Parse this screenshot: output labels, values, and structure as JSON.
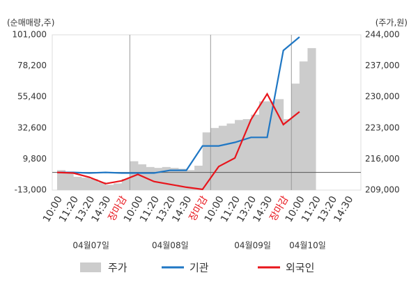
{
  "chart_data": {
    "type": "line",
    "left_axis_label": "(순매매량,주)",
    "right_axis_label": "(주가,원)",
    "xlim": [
      -0.3,
      18.8
    ],
    "xticks": [
      {
        "value": 0,
        "label": "10:00"
      },
      {
        "value": 1,
        "label": "11:20"
      },
      {
        "value": 2,
        "label": "13:20"
      },
      {
        "value": 3,
        "label": "14:30"
      },
      {
        "value": 4,
        "label": "장마감"
      },
      {
        "value": 5,
        "label": "10:00"
      },
      {
        "value": 6,
        "label": "11:20"
      },
      {
        "value": 7,
        "label": "13:20"
      },
      {
        "value": 8,
        "label": "14:30"
      },
      {
        "value": 9,
        "label": "장마감"
      },
      {
        "value": 10,
        "label": "10:00"
      },
      {
        "value": 11,
        "label": "11:20"
      },
      {
        "value": 12,
        "label": "13:20"
      },
      {
        "value": 13,
        "label": "14:30"
      },
      {
        "value": 14,
        "label": "장마감"
      },
      {
        "value": 15,
        "label": "10:00"
      },
      {
        "value": 16,
        "label": "11:20"
      },
      {
        "value": 17,
        "label": "13:20"
      },
      {
        "value": 18,
        "label": "14:30"
      }
    ],
    "dates": [
      "04월07일",
      "04월08일",
      "04월09일",
      "04월10일"
    ],
    "ylim": [
      -13000,
      101000
    ],
    "yticks": [
      {
        "value": -13000,
        "label": "-13,000"
      },
      {
        "value": 9800,
        "label": "9,800"
      },
      {
        "value": 32600,
        "label": "32,600"
      },
      {
        "value": 55400,
        "label": "55,400"
      },
      {
        "value": 78200,
        "label": "78,200"
      },
      {
        "value": 101000,
        "label": "101,000"
      }
    ],
    "y2lim": [
      209000,
      244000
    ],
    "y2ticks": [
      {
        "value": 209000,
        "label": "209,000"
      },
      {
        "value": 216000,
        "label": "216,000"
      },
      {
        "value": 223000,
        "label": "223,000"
      },
      {
        "value": 230000,
        "label": "230,000"
      },
      {
        "value": 237000,
        "label": "237,000"
      },
      {
        "value": 244000,
        "label": "244,000"
      }
    ],
    "series": [
      {
        "name": "주가",
        "color": "#cccccc",
        "axis": "y2",
        "style": "bar",
        "x": [
          0,
          0.5,
          1,
          1.5,
          2,
          2.5,
          3,
          3.5,
          4,
          4.5,
          5,
          5.5,
          6,
          6.5,
          7,
          7.5,
          8,
          8.5,
          9,
          9.5,
          10,
          10.5,
          11,
          11.5,
          12,
          12.5,
          13,
          13.5,
          14,
          14.5,
          15,
          15.5
        ],
        "values": [
          213500,
          212800,
          212000,
          211800,
          211500,
          210800,
          210200,
          210500,
          211500,
          215500,
          214800,
          214200,
          214000,
          214200,
          214000,
          213800,
          213500,
          214500,
          222000,
          223000,
          223500,
          224000,
          224800,
          225000,
          226000,
          229000,
          229000,
          229500,
          225000,
          233000,
          238000,
          241000
        ]
      },
      {
        "name": "기관",
        "color": "#1f77c4",
        "style": "line",
        "x": [
          0,
          1,
          2,
          3,
          4,
          5,
          6,
          7,
          8,
          9,
          10,
          11,
          12,
          13,
          14,
          15
        ],
        "values": [
          0,
          0,
          -500,
          0,
          -500,
          -500,
          -500,
          1500,
          1500,
          19400,
          19400,
          22000,
          25700,
          25700,
          89500,
          99400
        ]
      },
      {
        "name": "외국인",
        "color": "#e8141b",
        "style": "line",
        "x": [
          0,
          1,
          2,
          3,
          4,
          5,
          6,
          7,
          8,
          9,
          10,
          11,
          12,
          13,
          14,
          15
        ],
        "values": [
          0,
          -500,
          -3600,
          -8300,
          -6200,
          -1500,
          -6700,
          -8800,
          -10900,
          -12500,
          4300,
          10500,
          38800,
          57600,
          35100,
          44500
        ]
      }
    ]
  }
}
